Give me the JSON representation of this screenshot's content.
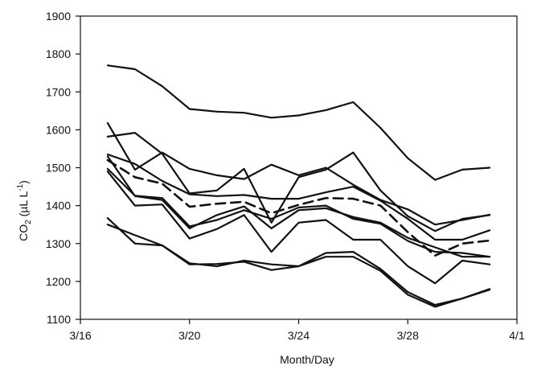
{
  "chart_data": {
    "type": "line",
    "title": "",
    "xlabel": "Month/Day",
    "ylabel": {
      "main": "CO",
      "sub": "2",
      "unit_open": " (µL L",
      "unit_sup": "-1",
      "unit_close": ")"
    },
    "xlim": [
      "2000-03-16",
      "2000-04-01"
    ],
    "ylim": [
      1100,
      1900
    ],
    "x_ticks": [
      {
        "date": "2000-03-16",
        "label": "3/16"
      },
      {
        "date": "2000-03-20",
        "label": "3/20"
      },
      {
        "date": "2000-03-24",
        "label": "3/24"
      },
      {
        "date": "2000-03-28",
        "label": "3/28"
      },
      {
        "date": "2000-04-01",
        "label": "4/1"
      }
    ],
    "y_ticks": [
      1100,
      1200,
      1300,
      1400,
      1500,
      1600,
      1700,
      1800,
      1900
    ],
    "grid": false,
    "legend": "none",
    "line_color": "#111111",
    "x": [
      "2000-03-17",
      "2000-03-18",
      "2000-03-19",
      "2000-03-20",
      "2000-03-21",
      "2000-03-22",
      "2000-03-23",
      "2000-03-24",
      "2000-03-25",
      "2000-03-26",
      "2000-03-27",
      "2000-03-28",
      "2000-03-29",
      "2000-03-30",
      "2000-03-31"
    ],
    "series": [
      {
        "style": "solid",
        "values": [
          1770,
          1760,
          1715,
          1655,
          1648,
          1645,
          1632,
          1638,
          1652,
          1673,
          1605,
          1525,
          1468,
          1495,
          1500
        ]
      },
      {
        "style": "solid",
        "values": [
          1618,
          1495,
          1540,
          1497,
          1480,
          1470,
          1508,
          1480,
          1500,
          1455,
          1415,
          1390,
          1350,
          1362,
          1376
        ]
      },
      {
        "style": "solid",
        "values": [
          1582,
          1592,
          1537,
          1432,
          1440,
          1497,
          1355,
          1475,
          1495,
          1540,
          1440,
          1372,
          1333,
          1365,
          1375
        ]
      },
      {
        "style": "solid",
        "values": [
          1535,
          1510,
          1465,
          1430,
          1425,
          1428,
          1418,
          1418,
          1435,
          1450,
          1413,
          1365,
          1310,
          1310,
          1335
        ]
      },
      {
        "style": "dashed",
        "values": [
          1520,
          1475,
          1458,
          1397,
          1405,
          1410,
          1380,
          1402,
          1420,
          1418,
          1400,
          1330,
          1268,
          1300,
          1308
        ]
      },
      {
        "style": "solid",
        "values": [
          1530,
          1425,
          1415,
          1340,
          1375,
          1398,
          1340,
          1388,
          1393,
          1370,
          1355,
          1315,
          1290,
          1265,
          1265
        ]
      },
      {
        "style": "solid",
        "values": [
          1497,
          1426,
          1420,
          1345,
          1362,
          1388,
          1365,
          1395,
          1400,
          1365,
          1352,
          1307,
          1278,
          1275,
          1265
        ]
      },
      {
        "style": "solid",
        "values": [
          1490,
          1400,
          1403,
          1313,
          1338,
          1375,
          1278,
          1355,
          1362,
          1310,
          1310,
          1240,
          1195,
          1255,
          1245
        ]
      },
      {
        "style": "solid",
        "values": [
          1367,
          1300,
          1295,
          1248,
          1240,
          1255,
          1245,
          1240,
          1275,
          1278,
          1233,
          1172,
          1138,
          1155,
          1180
        ]
      },
      {
        "style": "solid",
        "values": [
          1350,
          1322,
          1295,
          1245,
          1246,
          1252,
          1230,
          1240,
          1265,
          1265,
          1228,
          1165,
          1133,
          1155,
          1178
        ]
      }
    ]
  }
}
